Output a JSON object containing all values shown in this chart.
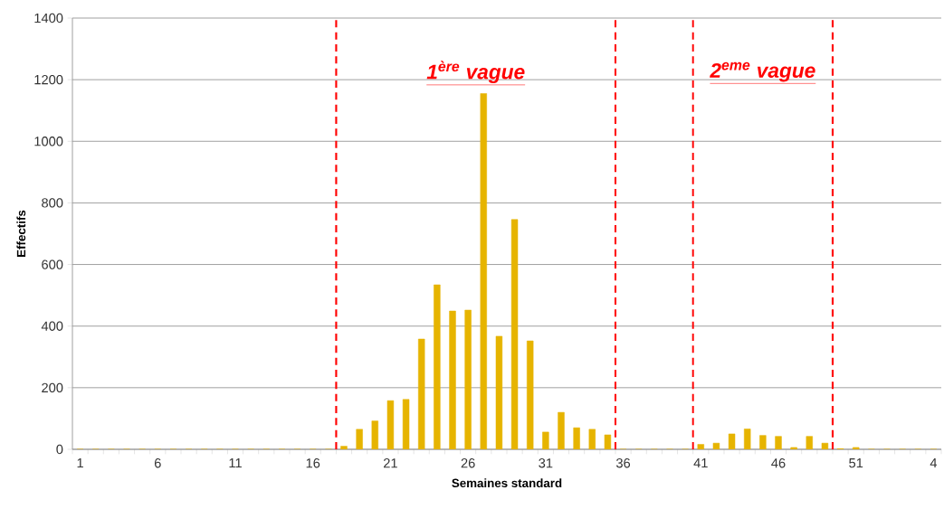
{
  "chart_data": {
    "type": "bar",
    "xlabel": "Semaines standard",
    "ylabel": "Effectifs",
    "categories": [
      "1",
      null,
      null,
      null,
      null,
      "6",
      null,
      null,
      null,
      null,
      "11",
      null,
      null,
      null,
      null,
      "16",
      null,
      null,
      null,
      null,
      "21",
      null,
      null,
      null,
      null,
      "26",
      null,
      null,
      null,
      null,
      "31",
      null,
      null,
      null,
      null,
      "36",
      null,
      null,
      null,
      null,
      "41",
      null,
      null,
      null,
      null,
      "46",
      null,
      null,
      null,
      null,
      "51",
      null,
      null,
      null,
      null,
      "4"
    ],
    "values": [
      0,
      0,
      0,
      0,
      0,
      0,
      0,
      0,
      0,
      0,
      0,
      0,
      0,
      0,
      0,
      0,
      0,
      10,
      65,
      92,
      158,
      162,
      358,
      534,
      449,
      452,
      1155,
      367,
      746,
      352,
      56,
      120,
      70,
      65,
      47,
      0,
      0,
      0,
      0,
      0,
      16,
      20,
      50,
      66,
      45,
      42,
      6,
      42,
      20,
      2,
      6,
      0,
      0,
      0,
      0,
      0
    ],
    "color": "#e6b400",
    "ylim": [
      0,
      1400
    ],
    "yticks": [
      0,
      200,
      400,
      600,
      800,
      1000,
      1200,
      1400
    ],
    "grid": "y",
    "annotations": [
      "1$^{ère}$ vague",
      "2$^{eme}$ vague"
    ]
  }
}
